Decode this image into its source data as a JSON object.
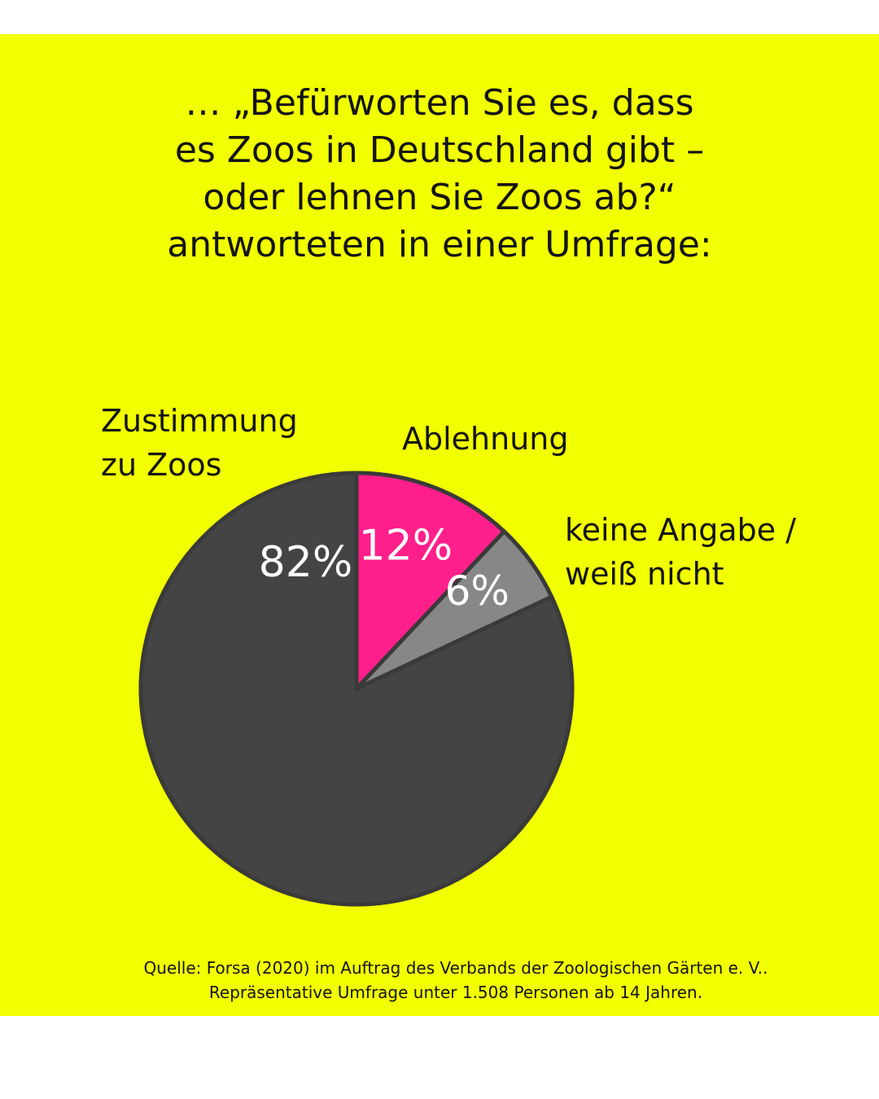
{
  "title_lines": [
    "… „Befürworten Sie es, dass",
    "es Zoos in Deutschland gibt –",
    "oder lehnen Sie Zoos ab?“",
    "antworteten in einer Umfrage:"
  ],
  "colors": {
    "background": "#f2ff00",
    "slice_zustimmung": "#444444",
    "slice_ablehnung": "#ff1f8a",
    "slice_keine_angabe": "#878787",
    "slice_outline": "#3a3a3a",
    "value_text": "#ffffff"
  },
  "chart_data": {
    "type": "pie",
    "slices": [
      {
        "label_lines": [
          "Zustimmung",
          "zu Zoos"
        ],
        "value": 82,
        "value_label": "82%"
      },
      {
        "label_lines": [
          "Ablehnung"
        ],
        "value": 12,
        "value_label": "12%"
      },
      {
        "label_lines": [
          "keine Angabe /",
          "weiß nicht"
        ],
        "value": 6,
        "value_label": "6%"
      }
    ]
  },
  "source_lines": [
    "Quelle: Forsa (2020) im Auftrag des Verbands der Zoologischen Gärten e. V..",
    "Repräsentative Umfrage unter 1.508 Personen ab 14 Jahren."
  ]
}
